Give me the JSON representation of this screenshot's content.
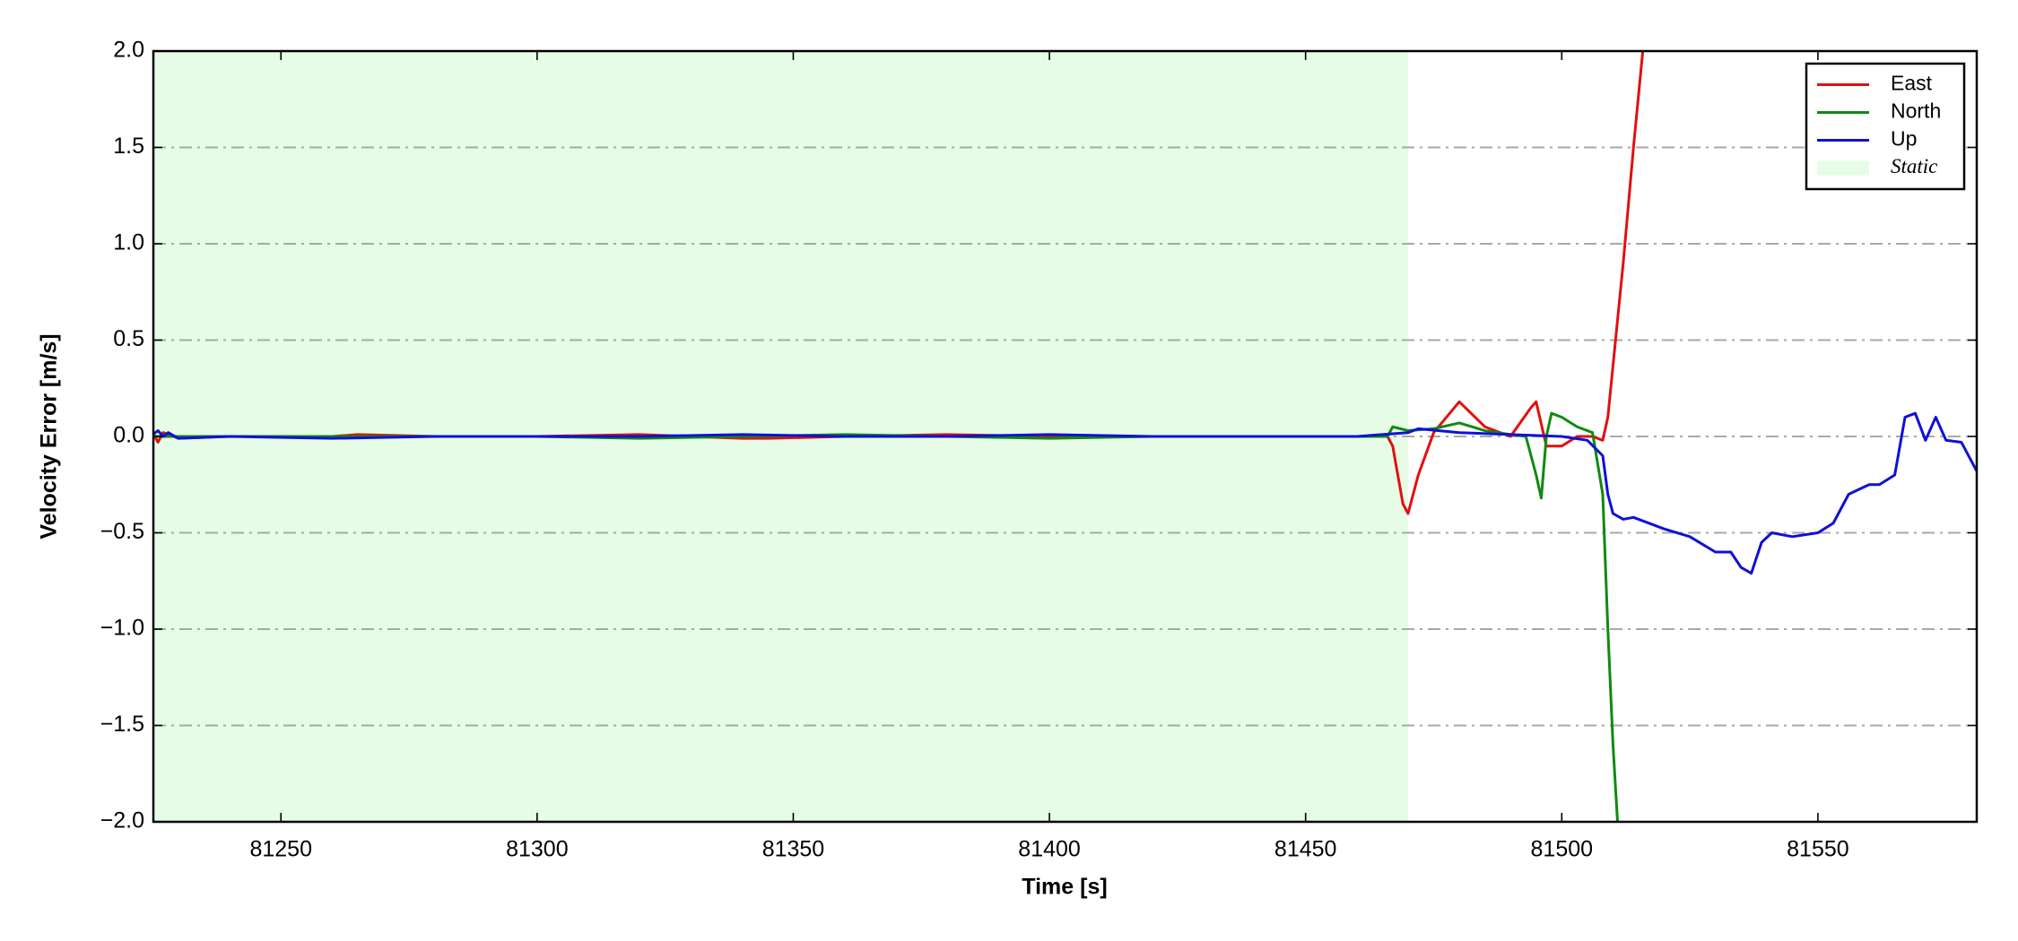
{
  "chart_data": {
    "type": "line",
    "xlabel": "Time [s]",
    "ylabel": "Velocity Error [m/s]",
    "xlim": [
      81225.1,
      81581
    ],
    "ylim": [
      -2.0,
      2.0
    ],
    "xticks": [
      81250,
      81300,
      81350,
      81400,
      81450,
      81500,
      81550
    ],
    "yticks": [
      {
        "value": -2.0,
        "label": "−2.0"
      },
      {
        "value": -1.5,
        "label": "−1.5"
      },
      {
        "value": -1.0,
        "label": "−1.0"
      },
      {
        "value": -0.5,
        "label": "−0.5"
      },
      {
        "value": 0.0,
        "label": "0.0"
      },
      {
        "value": 0.5,
        "label": "0.5"
      },
      {
        "value": 1.0,
        "label": "1.0"
      },
      {
        "value": 1.5,
        "label": "1.5"
      },
      {
        "value": 2.0,
        "label": "2.0"
      }
    ],
    "grid": true,
    "legend": "upper right",
    "shaded_regions": [
      {
        "name": "Static",
        "x": [
          81225.1,
          81470
        ],
        "color": "#e6fce6"
      }
    ],
    "series": [
      {
        "name": "East",
        "color": "#e01010",
        "x": [
          81225,
          81226,
          81227,
          81230,
          81240,
          81260,
          81265,
          81280,
          81300,
          81320,
          81340,
          81345,
          81360,
          81380,
          81400,
          81420,
          81440,
          81460,
          81466,
          81467,
          81469,
          81470,
          81472,
          81475,
          81480,
          81485,
          81490,
          81494,
          81495,
          81497,
          81500,
          81503,
          81506,
          81508,
          81509,
          81512,
          81514,
          81516
        ],
        "values": [
          0.02,
          -0.03,
          0.02,
          -0.01,
          0.0,
          0.0,
          0.01,
          0.0,
          0.0,
          0.01,
          -0.01,
          -0.01,
          0.0,
          0.01,
          0.0,
          0.0,
          0.0,
          0.0,
          0.0,
          -0.05,
          -0.35,
          -0.4,
          -0.2,
          0.02,
          0.18,
          0.05,
          0.0,
          0.15,
          0.18,
          -0.05,
          -0.05,
          0.0,
          0.0,
          -0.02,
          0.1,
          0.9,
          1.5,
          2.05
        ]
      },
      {
        "name": "North",
        "color": "#108a10",
        "x": [
          81225,
          81240,
          81260,
          81280,
          81300,
          81320,
          81340,
          81360,
          81380,
          81400,
          81420,
          81440,
          81460,
          81466,
          81467,
          81470,
          81475,
          81480,
          81485,
          81490,
          81493,
          81495,
          81496,
          81497,
          81498,
          81500,
          81503,
          81506,
          81508,
          81509,
          81510,
          81511
        ],
        "values": [
          0.0,
          0.0,
          0.0,
          0.0,
          0.0,
          -0.01,
          0.0,
          0.01,
          0.0,
          -0.01,
          0.0,
          0.0,
          0.0,
          0.0,
          0.05,
          0.03,
          0.04,
          0.07,
          0.03,
          0.01,
          0.0,
          -0.2,
          -0.32,
          0.0,
          0.12,
          0.1,
          0.05,
          0.02,
          -0.3,
          -1.0,
          -1.6,
          -2.05
        ]
      },
      {
        "name": "Up",
        "color": "#1010d8",
        "x": [
          81225,
          81226,
          81227,
          81228,
          81230,
          81240,
          81260,
          81280,
          81300,
          81320,
          81340,
          81360,
          81380,
          81400,
          81420,
          81440,
          81460,
          81470,
          81472,
          81480,
          81490,
          81500,
          81505,
          81508,
          81509,
          81510,
          81512,
          81514,
          81520,
          81525,
          81530,
          81533,
          81535,
          81537,
          81539,
          81541,
          81545,
          81550,
          81553,
          81556,
          81560,
          81562,
          81565,
          81567,
          81569,
          81571,
          81573,
          81575,
          81578,
          81581
        ],
        "values": [
          0.01,
          0.03,
          0.0,
          0.02,
          -0.01,
          0.0,
          -0.01,
          0.0,
          0.0,
          0.0,
          0.01,
          0.0,
          0.0,
          0.01,
          0.0,
          0.0,
          0.0,
          0.02,
          0.04,
          0.02,
          0.01,
          0.0,
          -0.02,
          -0.1,
          -0.3,
          -0.4,
          -0.43,
          -0.42,
          -0.48,
          -0.52,
          -0.6,
          -0.6,
          -0.68,
          -0.71,
          -0.55,
          -0.5,
          -0.52,
          -0.5,
          -0.45,
          -0.3,
          -0.25,
          -0.25,
          -0.2,
          0.1,
          0.12,
          -0.02,
          0.1,
          -0.02,
          -0.03,
          -0.18
        ]
      }
    ]
  }
}
